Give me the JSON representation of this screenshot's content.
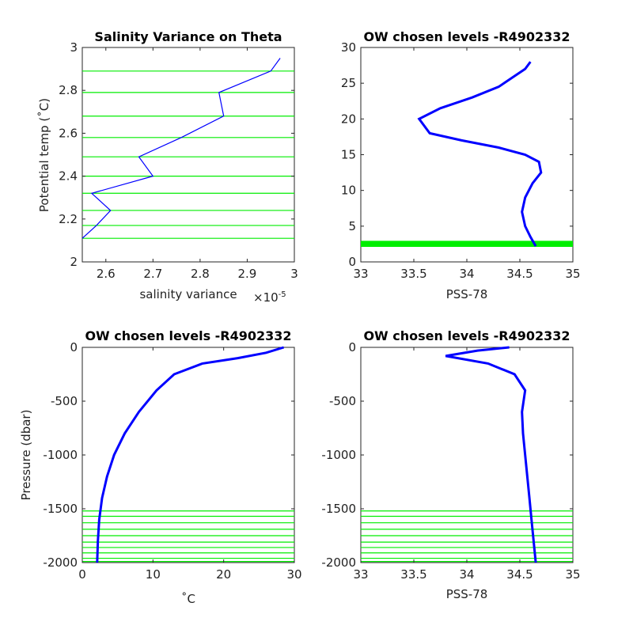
{
  "colors": {
    "data": "#0000ff",
    "levels": "#00ee00",
    "axis": "#262626"
  },
  "chart_data": [
    {
      "type": "line",
      "title": "Salinity Variance on Theta",
      "xlabel": "salinity variance",
      "x_exponent_label": "×10",
      "x_exponent_power": "-5",
      "ylabel": "Potential temp (˚C)",
      "xlim": [
        2.55,
        3.0
      ],
      "ylim": [
        2.0,
        3.0
      ],
      "xticks": [
        "2.6",
        "2.7",
        "2.8",
        "2.9",
        "3"
      ],
      "yticks": [
        "2",
        "2.2",
        "2.4",
        "2.6",
        "2.8",
        "3"
      ],
      "series": [
        {
          "x": [
            2.55,
            2.58,
            2.61,
            2.57,
            2.7,
            2.67,
            2.76,
            2.85,
            2.84,
            2.95,
            2.97
          ],
          "y": [
            2.11,
            2.17,
            2.24,
            2.32,
            2.4,
            2.49,
            2.58,
            2.68,
            2.79,
            2.89,
            2.95
          ]
        }
      ],
      "levels": [
        2.11,
        2.17,
        2.24,
        2.32,
        2.4,
        2.49,
        2.58,
        2.68,
        2.79,
        2.89
      ]
    },
    {
      "type": "line",
      "title": "OW chosen levels -R4902332",
      "xlabel": "PSS-78",
      "ylabel": "",
      "xlim": [
        33,
        35
      ],
      "ylim": [
        0,
        30
      ],
      "xticks": [
        "33",
        "33.5",
        "34",
        "34.5",
        "35"
      ],
      "yticks": [
        "0",
        "5",
        "10",
        "15",
        "20",
        "25",
        "30"
      ],
      "series": [
        {
          "x": [
            34.65,
            34.6,
            34.55,
            34.52,
            34.55,
            34.62,
            34.7,
            34.68,
            34.55,
            34.3,
            33.95,
            33.65,
            33.55,
            33.75,
            34.05,
            34.3,
            34.45,
            34.55,
            34.6
          ],
          "y": [
            2.2,
            3.5,
            5,
            7,
            9,
            11,
            12.5,
            14,
            15,
            16,
            17,
            18,
            20,
            21.5,
            23,
            24.5,
            26,
            27,
            28
          ]
        }
      ],
      "level_band": [
        2.1,
        2.95
      ]
    },
    {
      "type": "line",
      "title": "OW chosen levels -R4902332",
      "xlabel": "˚C",
      "ylabel": "Pressure (dbar)",
      "xlim": [
        0,
        30
      ],
      "ylim": [
        -2000,
        0
      ],
      "xticks": [
        "0",
        "10",
        "20",
        "30"
      ],
      "yticks": [
        "0",
        "-500",
        "-1000",
        "-1500",
        "-2000"
      ],
      "series": [
        {
          "x": [
            2.1,
            2.2,
            2.4,
            2.8,
            3.5,
            4.5,
            6.0,
            8.0,
            10.5,
            13.0,
            17.0,
            22.0,
            26.0,
            28.5
          ],
          "y": [
            -2000,
            -1800,
            -1600,
            -1400,
            -1200,
            -1000,
            -800,
            -600,
            -400,
            -250,
            -150,
            -100,
            -50,
            0
          ]
        }
      ],
      "levels": [
        -1520,
        -1570,
        -1630,
        -1690,
        -1750,
        -1810,
        -1860,
        -1910,
        -1960,
        -1990
      ]
    },
    {
      "type": "line",
      "title": "OW chosen levels -R4902332",
      "xlabel": "PSS-78",
      "ylabel": "",
      "xlim": [
        33,
        35
      ],
      "ylim": [
        -2000,
        0
      ],
      "xticks": [
        "33",
        "33.5",
        "34",
        "34.5",
        "35"
      ],
      "yticks": [
        "0",
        "-500",
        "-1000",
        "-1500",
        "-2000"
      ],
      "series": [
        {
          "x": [
            34.65,
            34.63,
            34.61,
            34.59,
            34.57,
            34.55,
            34.53,
            34.52,
            34.55,
            34.45,
            34.2,
            33.8,
            34.1,
            34.4
          ],
          "y": [
            -2000,
            -1800,
            -1600,
            -1400,
            -1200,
            -1000,
            -800,
            -600,
            -400,
            -250,
            -150,
            -80,
            -30,
            0
          ]
        }
      ],
      "levels": [
        -1520,
        -1570,
        -1630,
        -1690,
        -1750,
        -1810,
        -1860,
        -1910,
        -1960,
        -1990
      ]
    }
  ]
}
